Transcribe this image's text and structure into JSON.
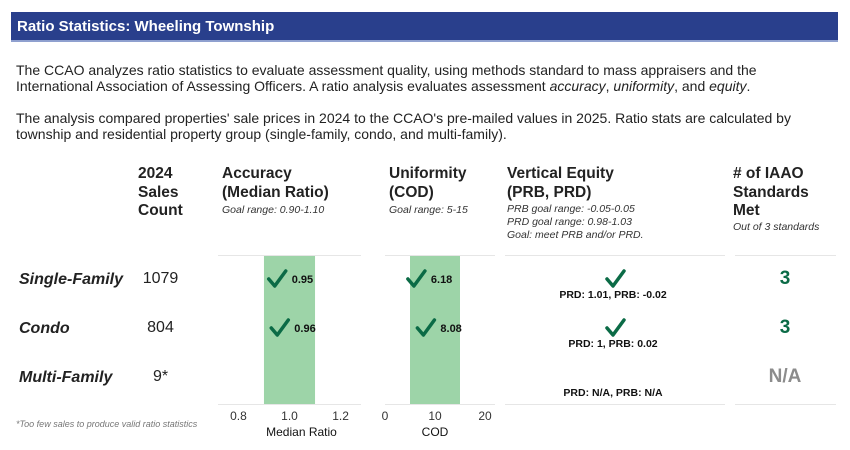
{
  "title": "Ratio Statistics: Wheeling Township",
  "paragraph1_pre": "The CCAO analyzes ratio statistics to evaluate assessment quality, using methods standard to mass appraisers and the International Association of Assessing Officers. A ratio analysis evaluates assessment ",
  "paragraph1_em1": "accuracy",
  "paragraph1_sep1": ", ",
  "paragraph1_em2": "uniformity",
  "paragraph1_sep2": ", and ",
  "paragraph1_em3": "equity",
  "paragraph1_end": ".",
  "paragraph2": "The analysis compared properties' sale prices in 2024 to the CCAO's pre-mailed values in 2025. Ratio stats are calculated by township and residential property group (single-family, condo, and multi-family).",
  "headers": {
    "count": [
      "2024",
      "Sales",
      "Count"
    ],
    "accuracy": [
      "Accuracy",
      "(Median Ratio)"
    ],
    "accuracy_sub": "Goal range: 0.90-1.10",
    "uniformity": [
      "Uniformity",
      "(COD)"
    ],
    "uniformity_sub": "Goal range: 5-15",
    "equity": [
      "Vertical Equity",
      "(PRB, PRD)"
    ],
    "equity_sub": [
      "PRB goal range: -0.05-0.05",
      "PRD goal range: 0.98-1.03",
      "Goal: meet PRB and/or PRD."
    ],
    "iaao": [
      "# of IAAO",
      "Standards",
      "Met"
    ],
    "iaao_sub": "Out of 3 standards"
  },
  "rows": [
    {
      "label": "Single-Family",
      "count": "1079",
      "median_ratio": 0.95,
      "median_label": "0.95",
      "cod": 6.18,
      "cod_label": "6.18",
      "equity_met": true,
      "equity_text": "PRD: 1.01, PRB: -0.02",
      "iaao": "3"
    },
    {
      "label": "Condo",
      "count": "804",
      "median_ratio": 0.96,
      "median_label": "0.96",
      "cod": 8.08,
      "cod_label": "8.08",
      "equity_met": true,
      "equity_text": "PRD: 1, PRB: 0.02",
      "iaao": "3"
    },
    {
      "label": "Multi-Family",
      "count": "9*",
      "median_ratio": null,
      "median_label": "",
      "cod": null,
      "cod_label": "",
      "equity_met": false,
      "equity_text": "PRD: N/A, PRB: N/A",
      "iaao": "N/A"
    }
  ],
  "footnote": "*Too few sales to produce valid ratio statistics",
  "chart_data": [
    {
      "type": "scatter",
      "xlabel": "Median Ratio",
      "xlim": [
        0.72,
        1.28
      ],
      "xticks": [
        "0.8",
        "1.0",
        "1.2"
      ],
      "goal_band": [
        0.9,
        1.1
      ],
      "categories": [
        "Single-Family",
        "Condo",
        "Multi-Family"
      ],
      "values": [
        0.95,
        0.96,
        null
      ]
    },
    {
      "type": "scatter",
      "xlabel": "COD",
      "xlim": [
        0,
        22
      ],
      "xticks": [
        "0",
        "10",
        "20"
      ],
      "goal_band": [
        5,
        15
      ],
      "categories": [
        "Single-Family",
        "Condo",
        "Multi-Family"
      ],
      "values": [
        6.18,
        8.08,
        null
      ]
    }
  ],
  "colors": {
    "header_bg": "#293f8c",
    "goal_band": "#9dd4a8",
    "check": "#0b6b46",
    "iaao_met": "#0b6b46",
    "iaao_na": "#8c8c8c"
  }
}
